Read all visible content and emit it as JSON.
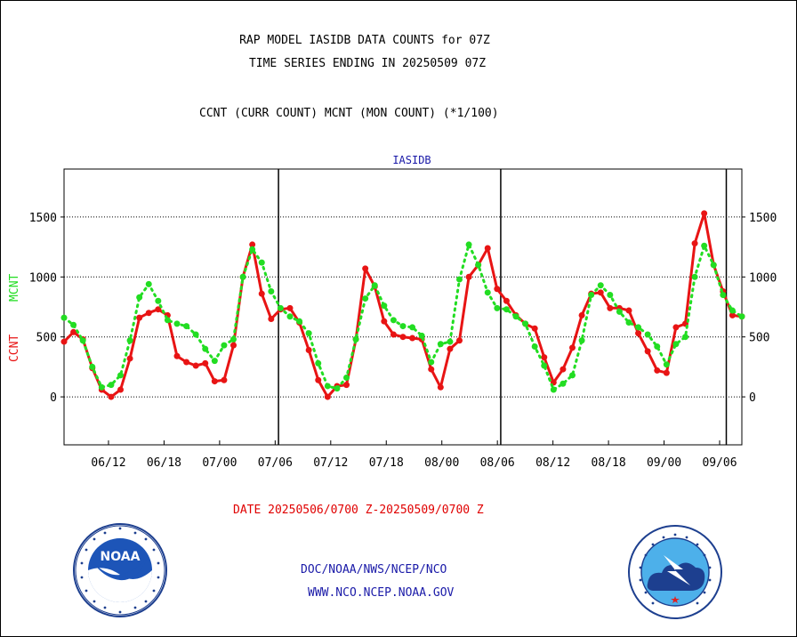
{
  "header": {
    "title_line1": "RAP MODEL IASIDB DATA COUNTS for 07Z",
    "title_line2": "TIME SERIES ENDING IN 20250509 07Z",
    "subtitle": "CCNT (CURR COUNT) MCNT (MON COUNT) (*1/100)"
  },
  "footer": {
    "date_range": "DATE 20250506/0700 Z-20250509/0700 Z",
    "org": "DOC/NOAA/NWS/NCEP/NCO",
    "url": "WWW.NCO.NCEP.NOAA.GOV"
  },
  "logos": {
    "left": {
      "icon": "noaa-logo-icon",
      "text": "NOAA"
    },
    "right": {
      "icon": "national-weather-service-logo-icon"
    }
  },
  "colors": {
    "ccnt": "#e81414",
    "mcnt": "#22dd22",
    "title": "#000000",
    "panel_title": "#1a1aa8",
    "footer_date": "#e00000",
    "footer_links": "#1a1aa8"
  },
  "chart_data": {
    "type": "line",
    "panel_title": "IASIDB",
    "ylabel_ccnt": "CCNT",
    "ylabel_mcnt": "MCNT",
    "ylim": [
      -400,
      1900
    ],
    "yticks": [
      0,
      500,
      1000,
      1500
    ],
    "ytick_labels": [
      "0",
      "500",
      "1000",
      "1500"
    ],
    "xlim": [
      0,
      61
    ],
    "xticks": [
      {
        "x": 4,
        "label": "06/12"
      },
      {
        "x": 9,
        "label": "06/18"
      },
      {
        "x": 14,
        "label": "07/00"
      },
      {
        "x": 19,
        "label": "07/06"
      },
      {
        "x": 24,
        "label": "07/12"
      },
      {
        "x": 29,
        "label": "07/18"
      },
      {
        "x": 34,
        "label": "08/00"
      },
      {
        "x": 39,
        "label": "08/06"
      },
      {
        "x": 44,
        "label": "08/12"
      },
      {
        "x": 49,
        "label": "08/18"
      },
      {
        "x": 54,
        "label": "09/00"
      },
      {
        "x": 59,
        "label": "09/06"
      }
    ],
    "day_boundaries": [
      19.3,
      39.3,
      59.6
    ],
    "grid": "horizontal dotted",
    "series": [
      {
        "name": "CCNT",
        "values": [
          460,
          540,
          480,
          240,
          60,
          0,
          60,
          320,
          660,
          700,
          730,
          680,
          340,
          290,
          260,
          280,
          130,
          140,
          430,
          1000,
          1270,
          860,
          650,
          730,
          740,
          620,
          390,
          140,
          0,
          90,
          100,
          480,
          1070,
          920,
          630,
          520,
          500,
          490,
          480,
          230,
          80,
          400,
          470,
          1000,
          1100,
          1240,
          900,
          800,
          680,
          610,
          570,
          330,
          120,
          230,
          410,
          680,
          860,
          870,
          740,
          740,
          720,
          530,
          380,
          220,
          200,
          580,
          610,
          1280,
          1530,
          1100,
          880,
          680,
          670
        ]
      },
      {
        "name": "MCNT",
        "values": [
          660,
          600,
          470,
          250,
          80,
          100,
          180,
          470,
          830,
          940,
          800,
          640,
          610,
          590,
          520,
          400,
          300,
          430,
          480,
          1000,
          1230,
          1120,
          880,
          740,
          670,
          630,
          530,
          280,
          90,
          70,
          160,
          480,
          820,
          930,
          760,
          640,
          590,
          580,
          510,
          290,
          440,
          460,
          980,
          1270,
          1100,
          870,
          740,
          730,
          670,
          610,
          420,
          260,
          60,
          110,
          180,
          470,
          850,
          930,
          850,
          710,
          620,
          580,
          520,
          420,
          270,
          440,
          500,
          1000,
          1260,
          1100,
          850,
          720,
          670
        ]
      }
    ]
  }
}
